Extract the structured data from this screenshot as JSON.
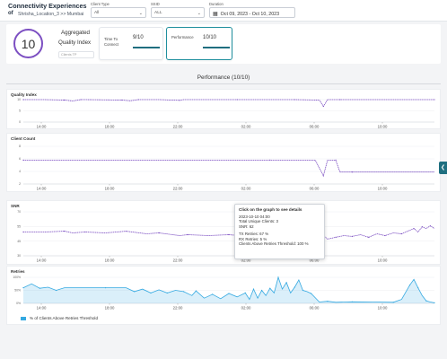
{
  "header": {
    "title": "Connectivity Experiences",
    "of": "of",
    "location": "Shrisha_Location_3 >> Mumbai",
    "filters": {
      "client_type": {
        "label": "Client Type",
        "value": "All"
      },
      "ssid": {
        "label": "SSID",
        "value": "ALL"
      },
      "duration": {
        "label": "Duration",
        "value": "Oct 09, 2023 - Oct 10, 2023"
      }
    }
  },
  "summary": {
    "score": "10",
    "aggregated": "Aggregated",
    "quality_index": "Quality Index",
    "clients_placeholder": "Clients TP",
    "cards": [
      {
        "title": "Time To Connect",
        "value": "9/10"
      },
      {
        "title": "Performance",
        "value": "10/10"
      }
    ]
  },
  "performance_title": "Performance (10/10)",
  "x_ticks": [
    "14:00",
    "18:00",
    "22:00",
    "02:00",
    "06:00",
    "10:00"
  ],
  "chart_data": [
    {
      "type": "line",
      "title": "Quality Index",
      "y_ticks": [
        "10",
        "5",
        "0"
      ],
      "ylim": [
        0,
        10
      ],
      "x_range": [
        "2023-10-09 11:00",
        "2023-10-10 12:30"
      ],
      "series": [
        {
          "color": "#7c4fc2",
          "points": [
            [
              0,
              10
            ],
            [
              5,
              10
            ],
            [
              10,
              9.8
            ],
            [
              12,
              9.4
            ],
            [
              14,
              10
            ],
            [
              15,
              10
            ],
            [
              24,
              9.8
            ],
            [
              26,
              9.5
            ],
            [
              28,
              10
            ],
            [
              33,
              10
            ],
            [
              38,
              9.7
            ],
            [
              39,
              10
            ],
            [
              52,
              10
            ],
            [
              58,
              10
            ],
            [
              66,
              10
            ],
            [
              72,
              9.8
            ],
            [
              73,
              7
            ],
            [
              74,
              10
            ],
            [
              77,
              10
            ],
            [
              79,
              10
            ],
            [
              100,
              10
            ]
          ]
        }
      ]
    },
    {
      "type": "line",
      "title": "Client Count",
      "y_ticks": [
        "8",
        "6",
        "4",
        "2"
      ],
      "ylim": [
        2,
        8
      ],
      "x_range": [
        "2023-10-09 11:00",
        "2023-10-10 12:30"
      ],
      "series": [
        {
          "color": "#7c4fc2",
          "points": [
            [
              0,
              5.8
            ],
            [
              30,
              5.8
            ],
            [
              60,
              5.8
            ],
            [
              71,
              5.8
            ],
            [
              73,
              3.3
            ],
            [
              74,
              5.8
            ],
            [
              76,
              5.8
            ],
            [
              77,
              3.9
            ],
            [
              80,
              3.9
            ],
            [
              100,
              3.9
            ]
          ]
        }
      ]
    },
    {
      "type": "line",
      "title": "SNR",
      "y_ticks": [
        "70",
        "55",
        "45",
        "30"
      ],
      "ylim": [
        25,
        75
      ],
      "x_range": [
        "2023-10-09 11:00",
        "2023-10-10 12:30"
      ],
      "series": [
        {
          "color": "#7c4fc2",
          "points": [
            [
              0,
              52
            ],
            [
              5,
              52
            ],
            [
              10,
              53
            ],
            [
              12,
              51
            ],
            [
              15,
              52
            ],
            [
              20,
              51
            ],
            [
              25,
              53
            ],
            [
              30,
              50
            ],
            [
              33,
              51
            ],
            [
              38,
              48
            ],
            [
              40,
              49
            ],
            [
              45,
              48
            ],
            [
              50,
              49
            ],
            [
              55,
              47
            ],
            [
              58,
              48
            ],
            [
              60,
              61
            ],
            [
              62,
              50
            ],
            [
              65,
              51
            ],
            [
              68,
              50
            ],
            [
              70,
              49
            ],
            [
              73,
              48
            ],
            [
              74,
              44
            ],
            [
              76,
              46
            ],
            [
              78,
              48
            ],
            [
              80,
              47
            ],
            [
              82,
              49
            ],
            [
              84,
              46
            ],
            [
              86,
              50
            ],
            [
              88,
              48
            ],
            [
              90,
              51
            ],
            [
              92,
              50
            ],
            [
              94,
              54
            ],
            [
              95,
              56
            ],
            [
              96,
              52
            ],
            [
              97,
              58
            ],
            [
              98,
              56
            ],
            [
              99,
              59
            ],
            [
              100,
              56
            ]
          ]
        }
      ]
    },
    {
      "type": "area",
      "title": "Retries",
      "y_ticks": [
        "100%",
        "50%",
        "0%"
      ],
      "ylim": [
        0,
        100
      ],
      "x_range": [
        "2023-10-09 11:00",
        "2023-10-10 12:30"
      ],
      "series": [
        {
          "name": "% of Clients Above Retries Threshold",
          "color": "#34a9e1",
          "points": [
            [
              0,
              60
            ],
            [
              2,
              75
            ],
            [
              4,
              58
            ],
            [
              6,
              62
            ],
            [
              8,
              50
            ],
            [
              10,
              60
            ],
            [
              20,
              60
            ],
            [
              25,
              60
            ],
            [
              27,
              45
            ],
            [
              29,
              55
            ],
            [
              31,
              40
            ],
            [
              33,
              52
            ],
            [
              35,
              40
            ],
            [
              37,
              50
            ],
            [
              39,
              45
            ],
            [
              41,
              30
            ],
            [
              42,
              48
            ],
            [
              44,
              20
            ],
            [
              46,
              35
            ],
            [
              48,
              18
            ],
            [
              50,
              38
            ],
            [
              52,
              25
            ],
            [
              54,
              40
            ],
            [
              55,
              15
            ],
            [
              56,
              55
            ],
            [
              57,
              20
            ],
            [
              58,
              50
            ],
            [
              59,
              30
            ],
            [
              60,
              58
            ],
            [
              61,
              40
            ],
            [
              62,
              100
            ],
            [
              63,
              55
            ],
            [
              64,
              80
            ],
            [
              65,
              40
            ],
            [
              66,
              62
            ],
            [
              67,
              90
            ],
            [
              68,
              50
            ],
            [
              69,
              45
            ],
            [
              70,
              38
            ],
            [
              72,
              5
            ],
            [
              74,
              8
            ],
            [
              76,
              4
            ],
            [
              80,
              6
            ],
            [
              85,
              5
            ],
            [
              90,
              4
            ],
            [
              92,
              15
            ],
            [
              94,
              70
            ],
            [
              95,
              92
            ],
            [
              96,
              60
            ],
            [
              97,
              30
            ],
            [
              98,
              10
            ],
            [
              99,
              5
            ],
            [
              100,
              2
            ]
          ]
        }
      ]
    }
  ],
  "tooltip": {
    "title": "Click on the graph to see details",
    "time": "2023-10-10 04:00",
    "total_clients": "Total Unique Clients: 3",
    "snr": "SNR: 62",
    "tx": "TX Retries: 67 %",
    "rx": "RX Retries: 5 %",
    "above": "Clients Above Retries Threshold: 100 %"
  },
  "legend": {
    "label": "% of Clients Above Retries Threshold"
  }
}
